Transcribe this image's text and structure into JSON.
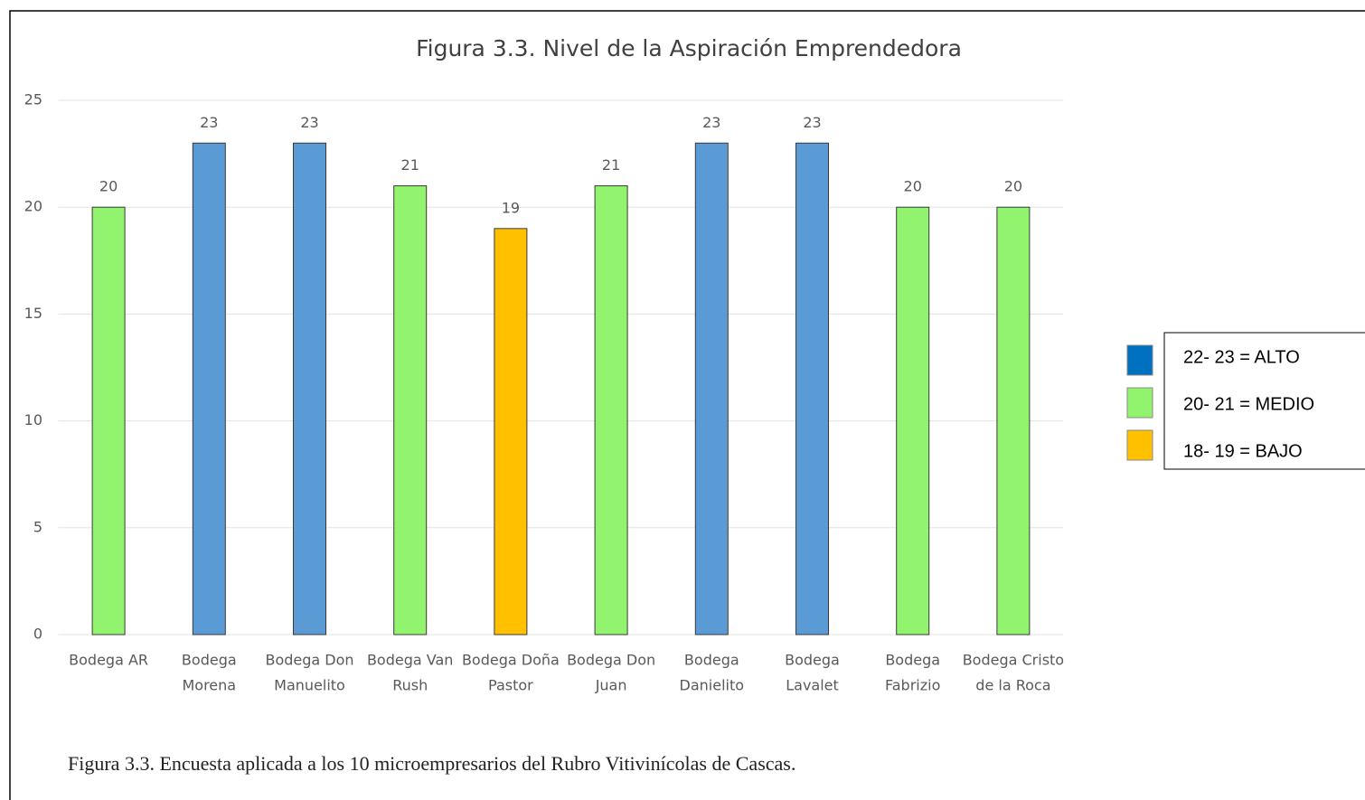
{
  "chart_data": {
    "type": "bar",
    "title": "Figura 3.3. Nivel de la Aspiración Emprendedora",
    "categories": [
      [
        "Bodega AR"
      ],
      [
        "Bodega",
        "Morena"
      ],
      [
        "Bodega Don",
        "Manuelito"
      ],
      [
        "Bodega Van",
        "Rush"
      ],
      [
        "Bodega Doña",
        "Pastor"
      ],
      [
        "Bodega Don",
        "Juan"
      ],
      [
        "Bodega",
        "Danielito"
      ],
      [
        "Bodega",
        "Lavalet"
      ],
      [
        "Bodega",
        "Fabrizio"
      ],
      [
        "Bodega Cristo",
        "de la Roca"
      ]
    ],
    "values": [
      20,
      23,
      23,
      21,
      19,
      21,
      23,
      23,
      20,
      20
    ],
    "colors": [
      "#92f36f",
      "#5b9bd5",
      "#5b9bd5",
      "#92f36f",
      "#ffc000",
      "#92f36f",
      "#5b9bd5",
      "#5b9bd5",
      "#92f36f",
      "#92f36f"
    ],
    "ylim": [
      0,
      25
    ],
    "yticks": [
      0,
      5,
      10,
      15,
      20,
      25
    ],
    "grid": true,
    "legend": [
      {
        "label": "22- 23 = ALTO",
        "color": "#0070c0"
      },
      {
        "label": "20- 21 = MEDIO",
        "color": "#92f36f"
      },
      {
        "label": "18- 19 = BAJO",
        "color": "#ffc000"
      }
    ],
    "caption": "Figura 3.3. Encuesta aplicada a los 10 microempresarios del Rubro Vitivinícolas de Cascas."
  }
}
